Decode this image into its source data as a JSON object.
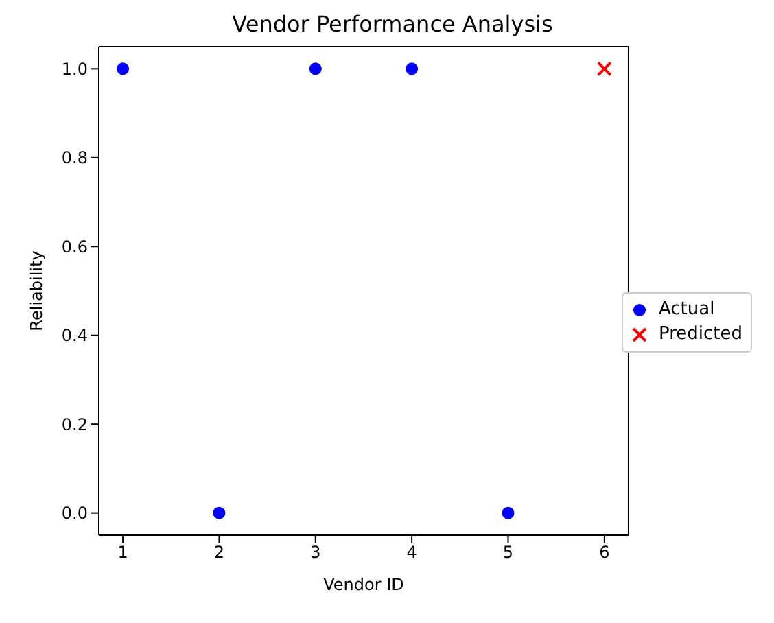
{
  "chart_data": {
    "type": "scatter",
    "title": "Vendor Performance Analysis",
    "xlabel": "Vendor ID",
    "ylabel": "Reliability",
    "xlim": [
      0.75,
      6.25
    ],
    "xticks": [
      1,
      2,
      3,
      4,
      5,
      6
    ],
    "ylim": [
      -0.05,
      1.05
    ],
    "yticks": [
      {
        "value": 0,
        "label": "0.0"
      },
      {
        "value": 0.2,
        "label": "0.2"
      },
      {
        "value": 0.4,
        "label": "0.4"
      },
      {
        "value": 0.6,
        "label": "0.6"
      },
      {
        "value": 0.8,
        "label": "0.8"
      },
      {
        "value": 1,
        "label": "1.0"
      }
    ],
    "legend": "right",
    "series": [
      {
        "name": "Actual",
        "color": "#0000ff",
        "marker": "circle",
        "x": [
          1,
          2,
          3,
          4,
          5
        ],
        "values": [
          1,
          0,
          1,
          1,
          0
        ]
      },
      {
        "name": "Predicted",
        "color": "#ff0000",
        "marker": "cross",
        "x": [
          6
        ],
        "values": [
          1
        ]
      }
    ]
  }
}
